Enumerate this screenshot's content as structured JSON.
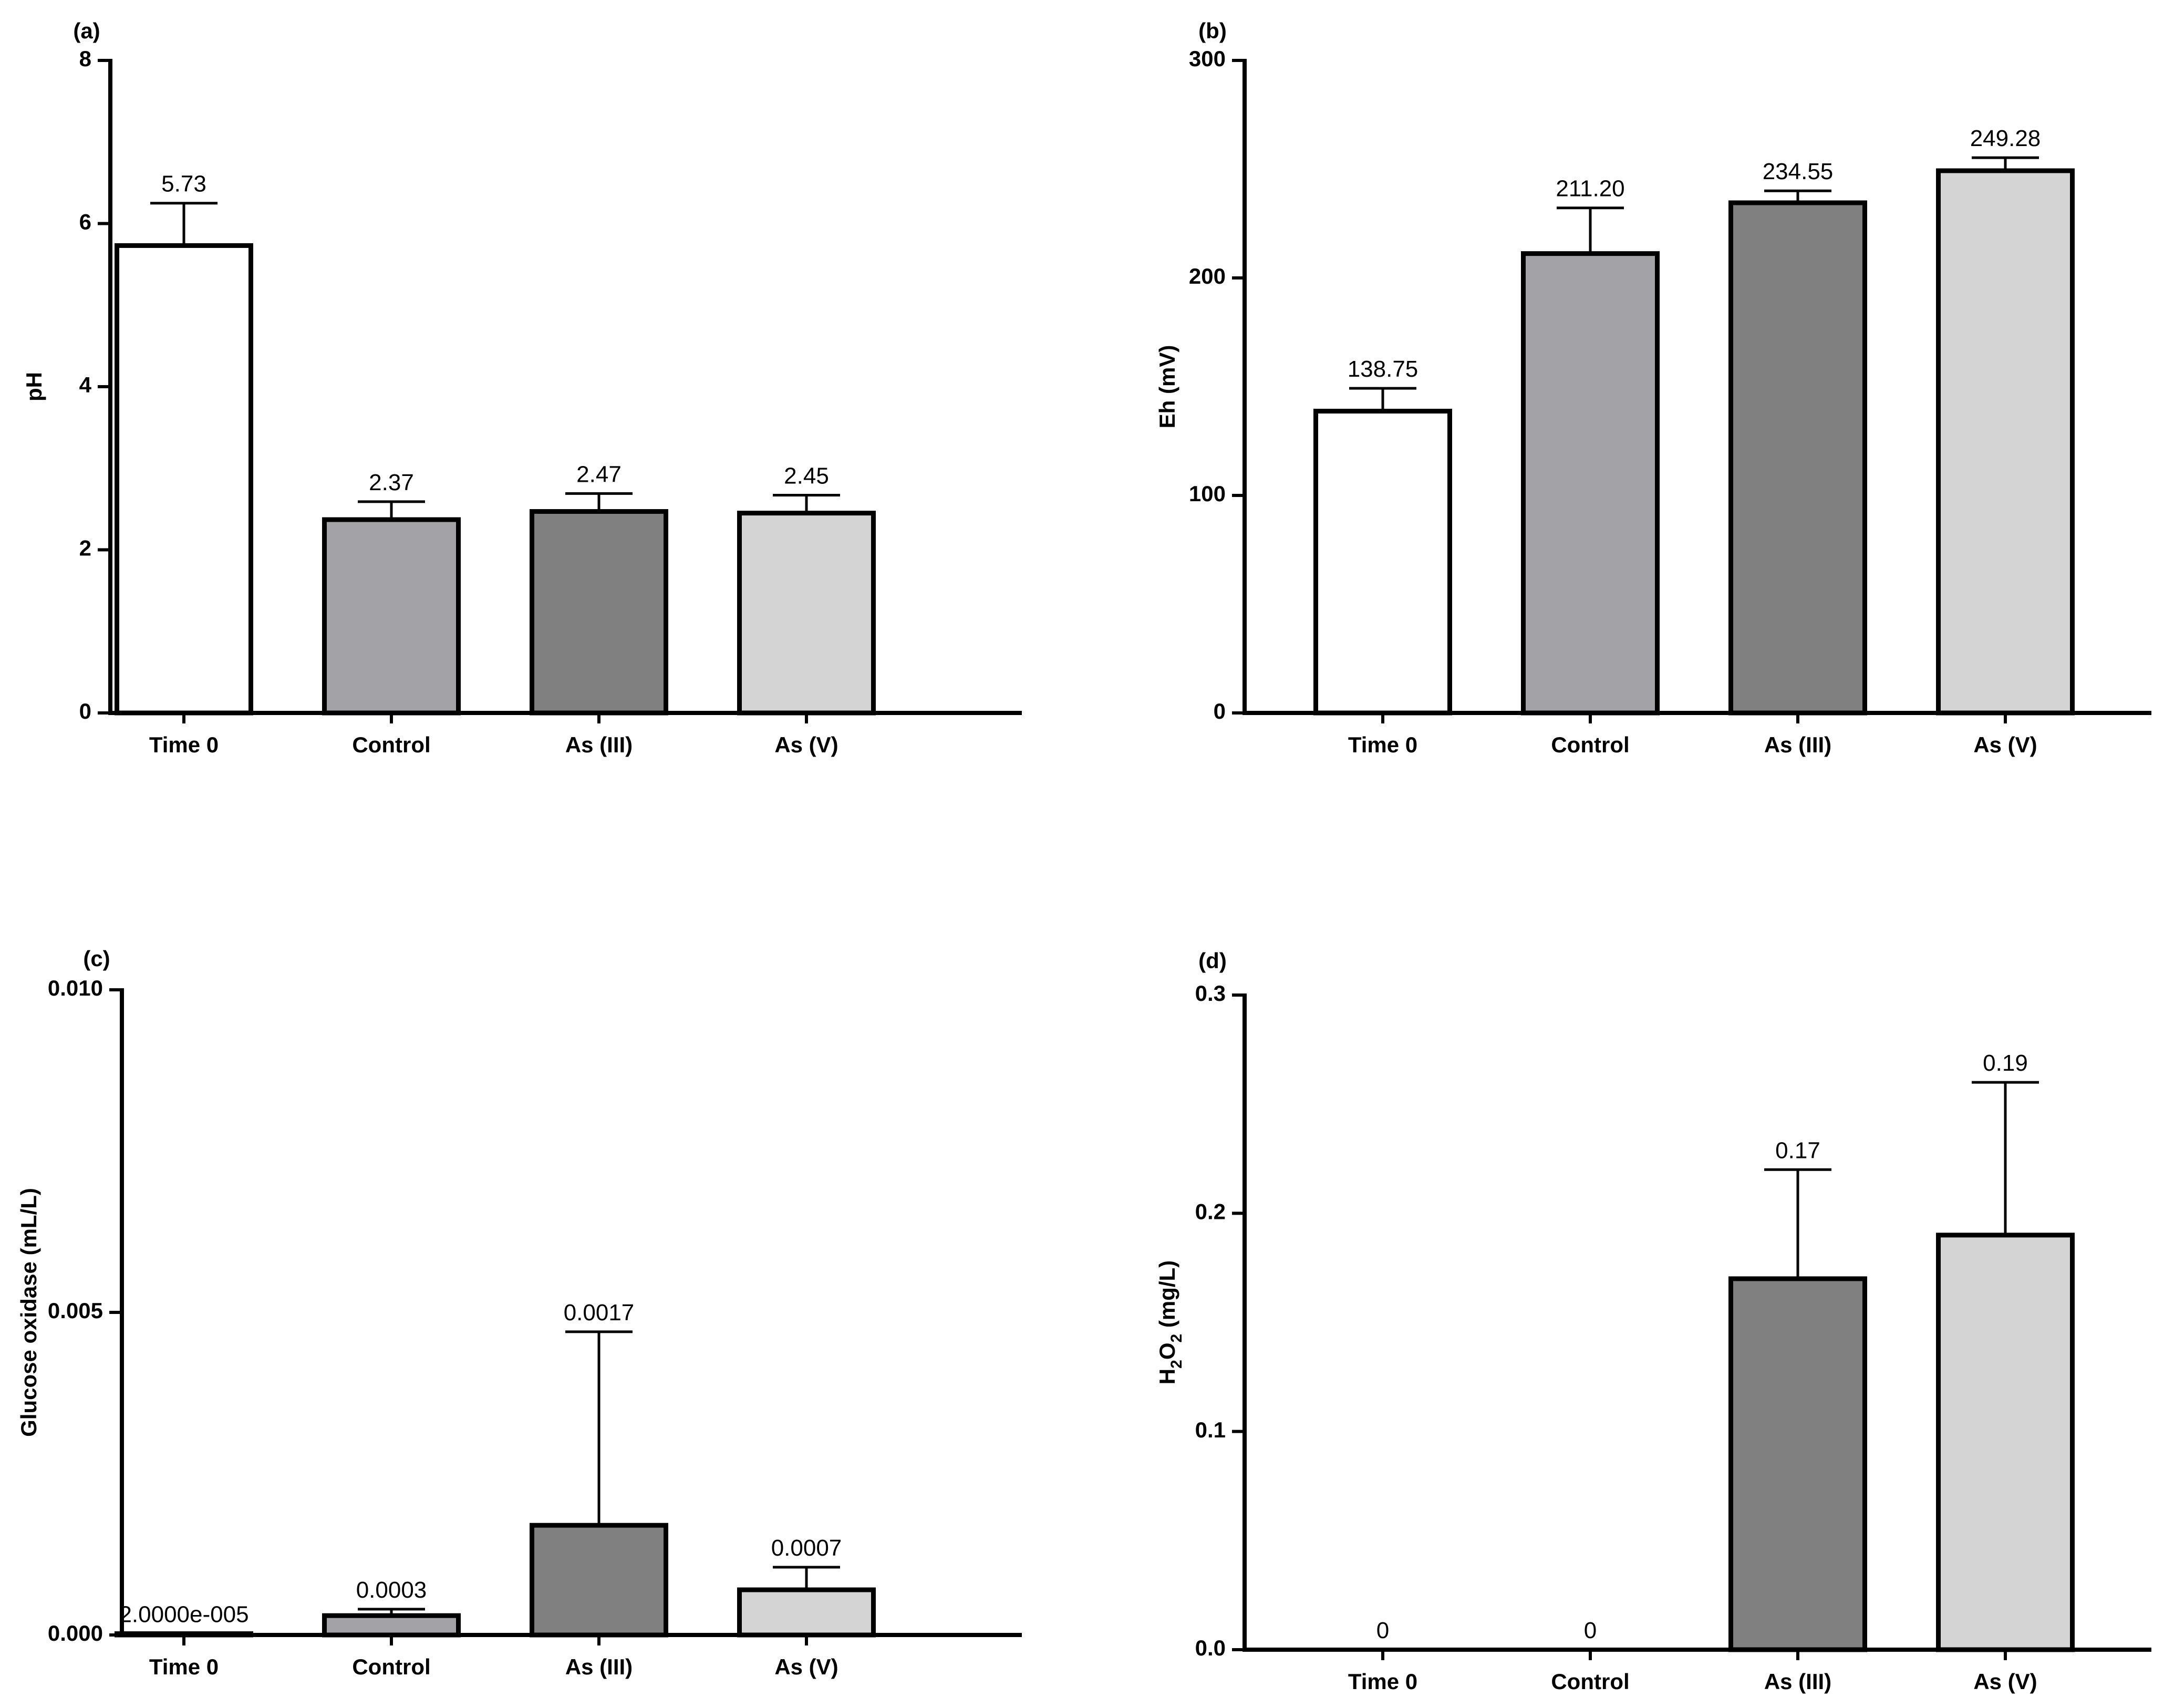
{
  "figure": {
    "panels": [
      "(a)",
      "(b)",
      "(c)",
      "(d)"
    ]
  },
  "chart_data": [
    {
      "type": "bar",
      "panel_label": "(a)",
      "title": "",
      "xlabel": "",
      "ylabel": "pH",
      "ylim": [
        0,
        8
      ],
      "yticks": [
        0,
        2,
        4,
        6,
        8
      ],
      "ytick_labels": [
        "0",
        "2",
        "4",
        "6",
        "8"
      ],
      "categories": [
        "Time 0",
        "Control",
        "As (III)",
        "As (V)"
      ],
      "values": [
        5.73,
        2.37,
        2.47,
        2.45
      ],
      "errors": [
        0.52,
        0.22,
        0.22,
        0.22
      ],
      "value_labels": [
        "5.73",
        "2.37",
        "2.47",
        "2.45"
      ],
      "colors": [
        "#ffffff",
        "#a3a2a6",
        "#808080",
        "#d4d4d4"
      ]
    },
    {
      "type": "bar",
      "panel_label": "(b)",
      "title": "",
      "xlabel": "",
      "ylabel": "Eh (mV)",
      "ylim": [
        0,
        300
      ],
      "yticks": [
        0,
        100,
        200,
        300
      ],
      "ytick_labels": [
        "0",
        "100",
        "200",
        "300"
      ],
      "categories": [
        "Time 0",
        "Control",
        "As (III)",
        "As (V)"
      ],
      "values": [
        138.75,
        211.2,
        234.55,
        249.28
      ],
      "errors": [
        10.5,
        21.0,
        5.5,
        6.0
      ],
      "value_labels": [
        "138.75",
        "211.20",
        "234.55",
        "249.28"
      ],
      "colors": [
        "#ffffff",
        "#a3a2a6",
        "#808080",
        "#d4d4d4"
      ]
    },
    {
      "type": "bar",
      "panel_label": "(c)",
      "title": "",
      "xlabel": "",
      "ylabel": "Glucose oxidase (mL/L)",
      "ylim": [
        0,
        0.01
      ],
      "yticks": [
        0,
        0.005,
        0.01
      ],
      "ytick_labels": [
        "0.000",
        "0.005",
        "0.010"
      ],
      "categories": [
        "Time 0",
        "Control",
        "As (III)",
        "As (V)"
      ],
      "values": [
        2e-05,
        0.0003,
        0.0017,
        0.0007
      ],
      "errors": [
        0,
        0.0001,
        0.003,
        0.00035
      ],
      "value_labels": [
        "2.0000e-005",
        "0.0003",
        "0.0017",
        "0.0007"
      ],
      "colors": [
        "#ffffff",
        "#a3a2a6",
        "#808080",
        "#d4d4d4"
      ]
    },
    {
      "type": "bar",
      "panel_label": "(d)",
      "title": "",
      "xlabel": "",
      "ylabel": "H2O2 (mg/L)",
      "ylabel_parts": [
        "H",
        "2",
        "O",
        "2",
        " (mg/L)"
      ],
      "ylim": [
        0,
        0.3
      ],
      "yticks": [
        0,
        0.1,
        0.2,
        0.3
      ],
      "ytick_labels": [
        "0.0",
        "0.1",
        "0.2",
        "0.3"
      ],
      "categories": [
        "Time 0",
        "Control",
        "As (III)",
        "As (V)"
      ],
      "values": [
        0,
        0,
        0.17,
        0.19
      ],
      "errors": [
        0,
        0,
        0.05,
        0.07
      ],
      "value_labels": [
        "0",
        "0",
        "0.17",
        "0.19"
      ],
      "colors": [
        "#ffffff",
        "#a3a2a6",
        "#808080",
        "#d4d4d4"
      ]
    }
  ]
}
